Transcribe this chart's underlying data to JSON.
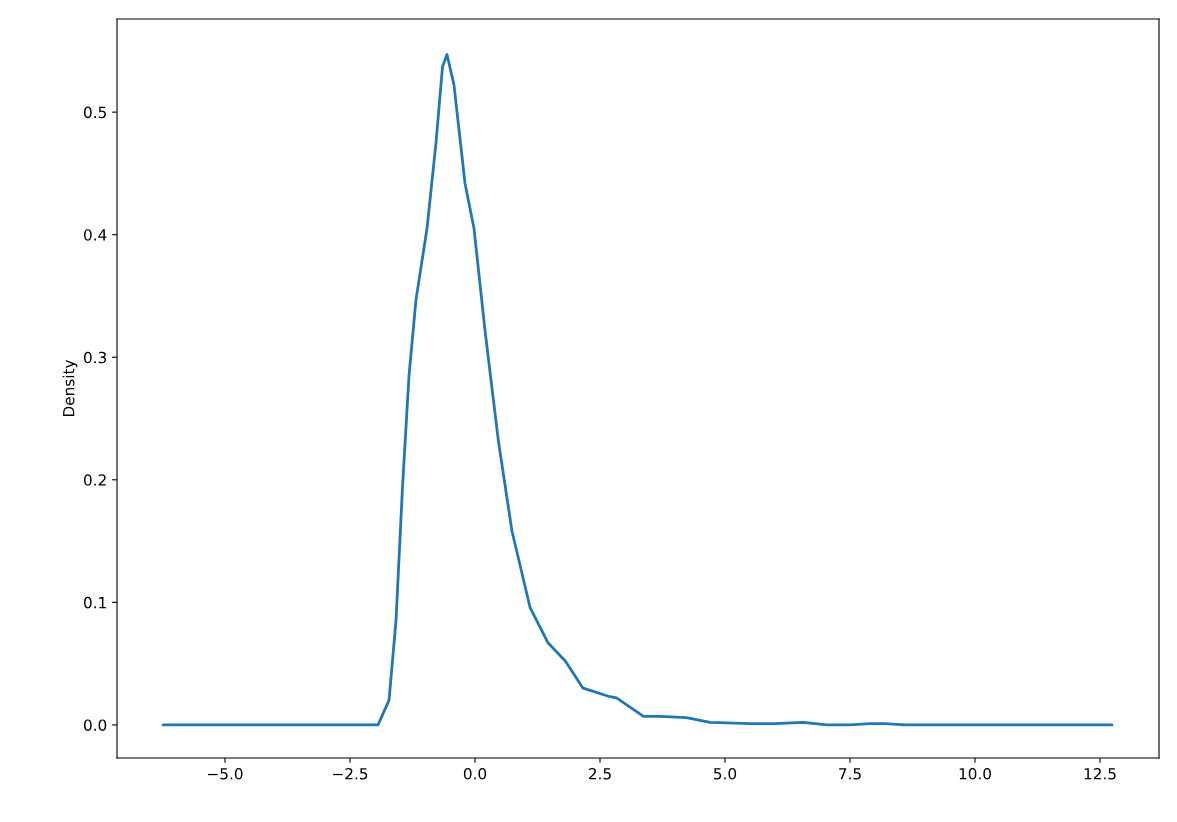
{
  "chart_data": {
    "type": "line",
    "ylabel": "Density",
    "x": [
      -6.24,
      -1.94,
      -1.72,
      -1.58,
      -1.45,
      -1.32,
      -1.18,
      -0.96,
      -0.78,
      -0.65,
      -0.56,
      -0.42,
      -0.2,
      -0.02,
      0.2,
      0.47,
      0.74,
      1.1,
      1.46,
      1.81,
      2.16,
      2.24,
      2.7,
      2.83,
      3.37,
      3.7,
      4.23,
      4.7,
      5.5,
      6.0,
      6.56,
      7.04,
      7.5,
      7.9,
      8.2,
      8.6,
      12.74
    ],
    "series": [
      {
        "color": "#1f77b4",
        "values": [
          0.0,
          0.0,
          0.02,
          0.085,
          0.194,
          0.285,
          0.347,
          0.405,
          0.475,
          0.537,
          0.547,
          0.522,
          0.442,
          0.405,
          0.322,
          0.231,
          0.158,
          0.096,
          0.067,
          0.052,
          0.03,
          0.029,
          0.023,
          0.022,
          0.007,
          0.007,
          0.006,
          0.002,
          0.001,
          0.001,
          0.002,
          0.0,
          0.0,
          0.001,
          0.001,
          0.0,
          0.0
        ]
      }
    ],
    "xlim": [
      -7.16,
      13.68
    ],
    "ylim": [
      -0.027,
      0.576
    ],
    "xticks": [
      {
        "value": -5,
        "label": "−5.0"
      },
      {
        "value": -2.5,
        "label": "−2.5"
      },
      {
        "value": 0,
        "label": "0.0"
      },
      {
        "value": 2.5,
        "label": "2.5"
      },
      {
        "value": 5,
        "label": "5.0"
      },
      {
        "value": 7.5,
        "label": "7.5"
      },
      {
        "value": 10,
        "label": "10.0"
      },
      {
        "value": 12.5,
        "label": "12.5"
      }
    ],
    "yticks": [
      {
        "value": 0,
        "label": "0.0"
      },
      {
        "value": 0.1,
        "label": "0.1"
      },
      {
        "value": 0.2,
        "label": "0.2"
      },
      {
        "value": 0.3,
        "label": "0.3"
      },
      {
        "value": 0.4,
        "label": "0.4"
      },
      {
        "value": 0.5,
        "label": "0.5"
      }
    ],
    "grid": false
  }
}
